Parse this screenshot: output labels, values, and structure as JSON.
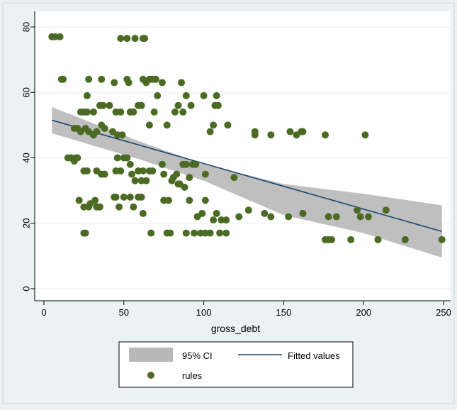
{
  "chart_data": {
    "type": "scatter",
    "xlabel": "gross_debt",
    "ylabel": "",
    "xlim": [
      0,
      250
    ],
    "ylim": [
      0,
      80
    ],
    "xticks": [
      "0",
      "50",
      "100",
      "150",
      "200",
      "250"
    ],
    "yticks": [
      "0",
      "20",
      "40",
      "60",
      "80"
    ],
    "grid": true,
    "legend": {
      "placement": "bottom",
      "entries": [
        "95% CI",
        "Fitted values",
        "rules"
      ]
    },
    "colors": {
      "points": "#4b6a23",
      "ci_band": "#b8b8b8",
      "fitted_line": "#1a476f",
      "background": "#eaf2f3",
      "plot_area": "#ffffff"
    },
    "series": [
      {
        "name": "rules",
        "kind": "scatter",
        "points": [
          [
            5,
            77
          ],
          [
            7,
            77
          ],
          [
            10,
            77
          ],
          [
            11,
            64
          ],
          [
            12,
            64
          ],
          [
            48,
            76.5
          ],
          [
            52,
            76.5
          ],
          [
            57,
            76.5
          ],
          [
            62,
            76.5
          ],
          [
            63,
            76.5
          ],
          [
            27,
            59
          ],
          [
            28,
            64
          ],
          [
            36,
            64
          ],
          [
            44,
            63
          ],
          [
            52,
            64
          ],
          [
            53,
            63
          ],
          [
            62,
            64
          ],
          [
            64,
            63
          ],
          [
            66,
            64
          ],
          [
            68,
            64
          ],
          [
            70,
            64
          ],
          [
            74,
            63
          ],
          [
            86,
            63
          ],
          [
            23,
            54
          ],
          [
            25,
            54
          ],
          [
            27,
            54
          ],
          [
            31,
            54
          ],
          [
            35,
            56
          ],
          [
            37,
            56
          ],
          [
            41,
            56
          ],
          [
            45,
            54
          ],
          [
            48,
            54
          ],
          [
            54,
            54
          ],
          [
            56,
            54
          ],
          [
            59,
            56
          ],
          [
            61,
            56
          ],
          [
            66,
            50
          ],
          [
            69,
            54
          ],
          [
            71,
            59
          ],
          [
            77,
            50
          ],
          [
            82,
            54
          ],
          [
            84,
            56
          ],
          [
            87,
            54
          ],
          [
            89,
            59
          ],
          [
            92,
            56
          ],
          [
            100,
            59
          ],
          [
            104,
            48
          ],
          [
            106,
            50
          ],
          [
            107,
            56
          ],
          [
            108,
            59
          ],
          [
            109,
            56
          ],
          [
            115,
            50
          ],
          [
            19,
            49
          ],
          [
            21,
            49
          ],
          [
            23,
            48
          ],
          [
            26,
            49
          ],
          [
            28,
            48
          ],
          [
            31,
            47
          ],
          [
            33,
            48
          ],
          [
            36,
            50
          ],
          [
            38,
            49
          ],
          [
            43,
            48
          ],
          [
            46,
            47
          ],
          [
            49,
            47
          ],
          [
            132,
            48
          ],
          [
            132,
            47
          ],
          [
            142,
            47
          ],
          [
            154,
            48
          ],
          [
            158,
            47
          ],
          [
            161,
            48
          ],
          [
            162,
            48
          ],
          [
            176,
            47
          ],
          [
            201,
            47
          ],
          [
            15,
            40
          ],
          [
            17,
            40
          ],
          [
            19,
            39
          ],
          [
            20,
            40
          ],
          [
            21,
            40
          ],
          [
            25,
            36
          ],
          [
            27,
            36
          ],
          [
            33,
            36
          ],
          [
            36,
            35
          ],
          [
            38,
            35
          ],
          [
            45,
            36
          ],
          [
            46,
            40
          ],
          [
            48,
            36
          ],
          [
            50,
            40
          ],
          [
            52,
            40
          ],
          [
            54,
            38
          ],
          [
            55,
            35
          ],
          [
            57,
            33
          ],
          [
            59,
            36
          ],
          [
            61,
            33
          ],
          [
            62,
            36
          ],
          [
            64,
            33
          ],
          [
            66,
            36
          ],
          [
            68,
            36
          ],
          [
            74,
            38
          ],
          [
            75,
            35
          ],
          [
            80,
            33
          ],
          [
            81,
            34
          ],
          [
            83,
            35
          ],
          [
            85,
            32
          ],
          [
            87,
            38
          ],
          [
            89,
            38
          ],
          [
            91,
            34
          ],
          [
            93,
            38
          ],
          [
            95,
            38
          ],
          [
            101,
            35
          ],
          [
            119,
            34
          ],
          [
            22,
            27
          ],
          [
            25,
            25
          ],
          [
            28,
            25
          ],
          [
            29,
            26
          ],
          [
            32,
            27
          ],
          [
            33,
            25
          ],
          [
            35,
            25
          ],
          [
            44,
            28
          ],
          [
            45,
            28
          ],
          [
            47,
            25
          ],
          [
            50,
            28
          ],
          [
            54,
            28
          ],
          [
            56,
            25
          ],
          [
            59,
            28
          ],
          [
            61,
            28
          ],
          [
            62,
            23
          ],
          [
            75,
            27
          ],
          [
            78,
            27
          ],
          [
            84,
            32
          ],
          [
            88,
            31
          ],
          [
            91,
            27
          ],
          [
            96,
            22
          ],
          [
            99,
            23
          ],
          [
            101,
            27
          ],
          [
            106,
            21
          ],
          [
            108,
            23
          ],
          [
            111,
            21
          ],
          [
            114,
            21
          ],
          [
            122,
            22
          ],
          [
            128,
            24
          ],
          [
            138,
            23
          ],
          [
            142,
            22
          ],
          [
            153,
            22
          ],
          [
            162,
            23
          ],
          [
            178,
            22
          ],
          [
            183,
            22
          ],
          [
            196,
            24
          ],
          [
            198,
            22
          ],
          [
            203,
            22
          ],
          [
            214,
            24
          ],
          [
            25,
            17
          ],
          [
            26,
            17
          ],
          [
            67,
            17
          ],
          [
            77,
            17
          ],
          [
            79,
            17
          ],
          [
            89,
            17
          ],
          [
            94,
            17
          ],
          [
            98,
            17
          ],
          [
            101,
            17
          ],
          [
            104,
            17
          ],
          [
            110,
            17
          ],
          [
            114,
            17
          ],
          [
            176,
            15
          ],
          [
            178,
            15
          ],
          [
            180,
            15
          ],
          [
            192,
            15
          ],
          [
            209,
            15
          ],
          [
            226,
            15
          ],
          [
            249,
            15
          ]
        ]
      },
      {
        "name": "Fitted values",
        "kind": "line",
        "points": [
          [
            5,
            51.5
          ],
          [
            249,
            17.5
          ]
        ]
      },
      {
        "name": "95% CI",
        "kind": "band",
        "points": [
          [
            5,
            47.5,
            55.5
          ],
          [
            60,
            39.5,
            45
          ],
          [
            100,
            33,
            38
          ],
          [
            150,
            22.5,
            32
          ],
          [
            200,
            17,
            29
          ],
          [
            249,
            9.5,
            25.5
          ]
        ]
      }
    ]
  }
}
